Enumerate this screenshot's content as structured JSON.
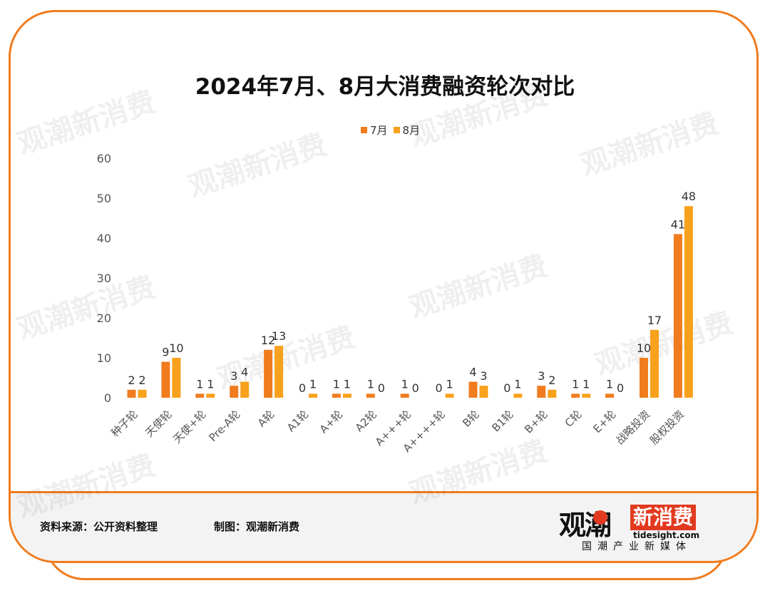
{
  "title": "2024年7月、8月大消费融资轮次对比",
  "legend": [
    {
      "label": "7月",
      "color": "#f07c1e"
    },
    {
      "label": "8月",
      "color": "#f8a11c"
    }
  ],
  "footer": {
    "source": "资料来源：公开资料整理",
    "maker": "制图：观潮新消费"
  },
  "logo": {
    "main": "观潮",
    "box": "新消费",
    "url": "tidesight.com",
    "tagline": "国潮产业新媒体"
  },
  "watermark": "观潮新消费",
  "chart_data": {
    "type": "bar",
    "title": "2024年7月、8月大消费融资轮次对比",
    "categories": [
      "种子轮",
      "天使轮",
      "天使+轮",
      "Pre-A轮",
      "A轮",
      "A1轮",
      "A+轮",
      "A2轮",
      "A+++轮",
      "A++++轮",
      "B轮",
      "B1轮",
      "B+轮",
      "C轮",
      "E+轮",
      "战略投资",
      "股权投资"
    ],
    "series": [
      {
        "name": "7月",
        "color": "#f07c1e",
        "values": [
          2,
          9,
          1,
          3,
          12,
          0,
          1,
          1,
          1,
          0,
          4,
          0,
          3,
          1,
          1,
          10,
          41
        ]
      },
      {
        "name": "8月",
        "color": "#f8a11c",
        "values": [
          2,
          10,
          1,
          4,
          13,
          1,
          1,
          0,
          0,
          1,
          3,
          1,
          2,
          1,
          0,
          17,
          48
        ]
      }
    ],
    "yticks": [
      0,
      10,
      20,
      30,
      40,
      50,
      60
    ],
    "ylim": [
      0,
      60
    ],
    "grid": false,
    "legend_position": "top-center"
  }
}
